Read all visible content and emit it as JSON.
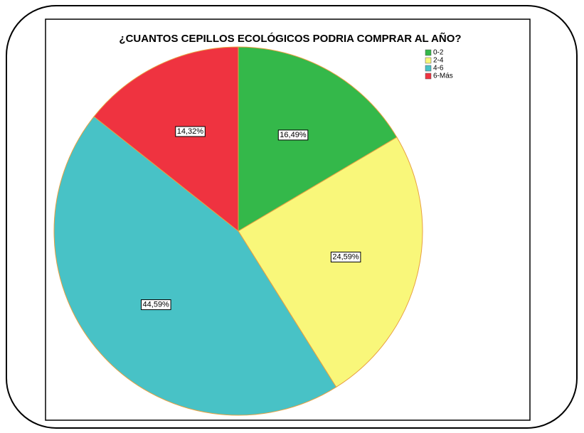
{
  "chart_data": {
    "type": "pie",
    "title": "¿CUANTOS CEPILLOS ECOLÓGICOS PODRIA COMPRAR AL AÑO?",
    "categories": [
      "0-2",
      "2-4",
      "4-6",
      "6-Más"
    ],
    "values": [
      16.49,
      24.59,
      44.59,
      14.32
    ],
    "value_labels": [
      "16,49%",
      "24,59%",
      "44,59%",
      "14,32%"
    ],
    "colors": [
      "#34b84a",
      "#f9f77a",
      "#48c2c6",
      "#ef3340"
    ],
    "legend": "top-right"
  }
}
